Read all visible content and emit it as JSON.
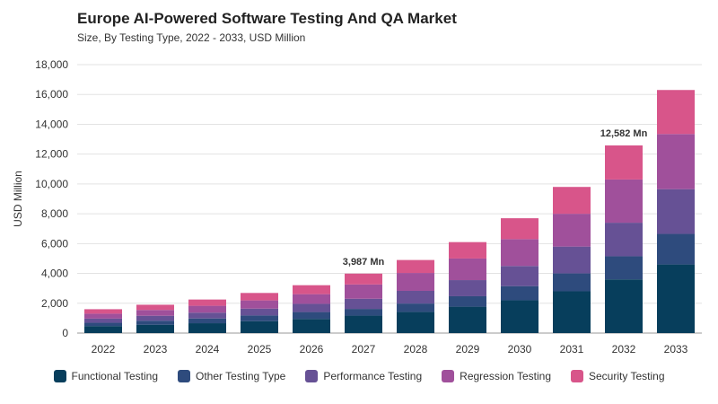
{
  "header": {
    "title": "Europe AI-Powered Software Testing And QA Market",
    "subtitle": "Size, By Testing Type, 2022 - 2033, USD Million"
  },
  "chart_data": {
    "type": "bar",
    "stacked": true,
    "title": "Europe AI-Powered Software Testing And QA Market",
    "subtitle": "Size, By Testing Type, 2022 - 2033, USD Million",
    "xlabel": "",
    "ylabel": "USD Million",
    "ylim": [
      0,
      18000
    ],
    "yticks": [
      0,
      2000,
      4000,
      6000,
      8000,
      10000,
      12000,
      14000,
      16000,
      18000
    ],
    "ytick_labels": [
      "0",
      "2,000",
      "4,000",
      "6,000",
      "8,000",
      "10,000",
      "12,000",
      "14,000",
      "16,000",
      "18,000"
    ],
    "grid": true,
    "legend_position": "bottom",
    "categories": [
      "2022",
      "2023",
      "2024",
      "2025",
      "2026",
      "2027",
      "2028",
      "2029",
      "2030",
      "2031",
      "2032",
      "2033"
    ],
    "series": [
      {
        "name": "Functional Testing",
        "color": "#073e5c",
        "values": [
          470,
          560,
          660,
          800,
          950,
          1170,
          1420,
          1770,
          2200,
          2800,
          3600,
          4600
        ]
      },
      {
        "name": "Other Testing Type",
        "color": "#2e4b7d",
        "values": [
          220,
          270,
          320,
          380,
          460,
          450,
          560,
          700,
          950,
          1200,
          1550,
          2050
        ]
      },
      {
        "name": "Performance Testing",
        "color": "#665195",
        "values": [
          280,
          330,
          390,
          460,
          550,
          680,
          850,
          1080,
          1350,
          1800,
          2250,
          3000
        ]
      },
      {
        "name": "Regression Testing",
        "color": "#a0509b",
        "values": [
          330,
          390,
          460,
          550,
          650,
          960,
          1200,
          1450,
          1800,
          2200,
          2900,
          3700
        ]
      },
      {
        "name": "Security Testing",
        "color": "#d8558a",
        "values": [
          300,
          350,
          420,
          500,
          600,
          727,
          870,
          1100,
          1400,
          1800,
          2282,
          2950
        ]
      }
    ],
    "annotations": [
      {
        "category": "2027",
        "text": "3,987 Mn"
      },
      {
        "category": "2032",
        "text": "12,582 Mn"
      }
    ]
  }
}
